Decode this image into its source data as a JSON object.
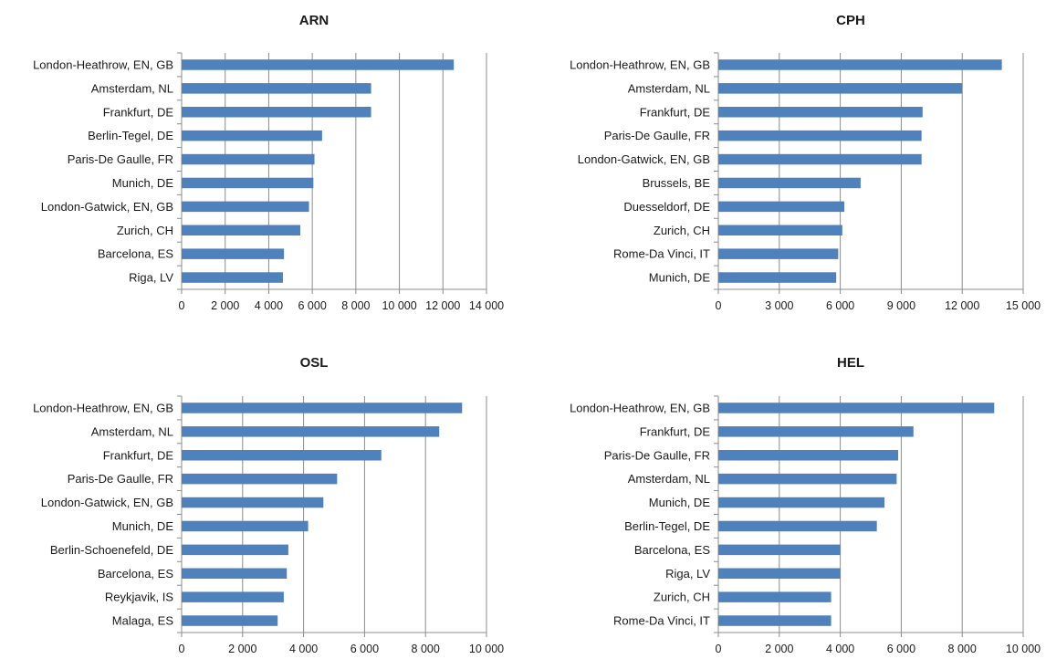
{
  "chart_data": [
    {
      "type": "bar",
      "orientation": "horizontal",
      "title": "ARN",
      "categories": [
        "London-Heathrow, EN, GB",
        "Amsterdam, NL",
        "Frankfurt, DE",
        "Berlin-Tegel, DE",
        "Paris-De Gaulle, FR",
        "Munich, DE",
        "London-Gatwick, EN, GB",
        "Zurich, CH",
        "Barcelona, ES",
        "Riga, LV"
      ],
      "values": [
        12500,
        8700,
        8700,
        6450,
        6100,
        6050,
        5850,
        5450,
        4700,
        4650
      ],
      "xlim": [
        0,
        14000
      ],
      "xticks": [
        0,
        2000,
        4000,
        6000,
        8000,
        10000,
        12000,
        14000
      ],
      "xtick_labels": [
        "0",
        "2 000",
        "4 000",
        "6 000",
        "8 000",
        "10 000",
        "12 000",
        "14 000"
      ],
      "grid": true,
      "color": "#4f81bd"
    },
    {
      "type": "bar",
      "orientation": "horizontal",
      "title": "CPH",
      "categories": [
        "London-Heathrow, EN, GB",
        "Amsterdam, NL",
        "Frankfurt, DE",
        "Paris-De Gaulle, FR",
        "London-Gatwick, EN, GB",
        "Brussels, BE",
        "Duesseldorf, DE",
        "Zurich, CH",
        "Rome-Da Vinci, IT",
        "Munich, DE"
      ],
      "values": [
        13950,
        12000,
        10050,
        10000,
        10000,
        7000,
        6200,
        6100,
        5900,
        5800
      ],
      "xlim": [
        0,
        15000
      ],
      "xticks": [
        0,
        3000,
        6000,
        9000,
        12000,
        15000
      ],
      "xtick_labels": [
        "0",
        "3 000",
        "6 000",
        "9 000",
        "12 000",
        "15 000"
      ],
      "grid": true,
      "color": "#4f81bd"
    },
    {
      "type": "bar",
      "orientation": "horizontal",
      "title": "OSL",
      "categories": [
        "London-Heathrow, EN, GB",
        "Amsterdam, NL",
        "Frankfurt, DE",
        "Paris-De Gaulle, FR",
        "London-Gatwick, EN, GB",
        "Munich, DE",
        "Berlin-Schoenefeld, DE",
        "Barcelona, ES",
        "Reykjavik, IS",
        "Malaga, ES"
      ],
      "values": [
        9200,
        8450,
        6550,
        5100,
        4650,
        4150,
        3500,
        3450,
        3350,
        3150
      ],
      "xlim": [
        0,
        10000
      ],
      "xticks": [
        0,
        2000,
        4000,
        6000,
        8000,
        10000
      ],
      "xtick_labels": [
        "0",
        "2 000",
        "4 000",
        "6 000",
        "8 000",
        "10 000"
      ],
      "grid": true,
      "color": "#4f81bd"
    },
    {
      "type": "bar",
      "orientation": "horizontal",
      "title": "HEL",
      "categories": [
        "London-Heathrow, EN, GB",
        "Frankfurt, DE",
        "Paris-De Gaulle, FR",
        "Amsterdam, NL",
        "Munich, DE",
        "Berlin-Tegel, DE",
        "Barcelona, ES",
        "Riga, LV",
        "Zurich, CH",
        "Rome-Da Vinci, IT"
      ],
      "values": [
        9050,
        6400,
        5900,
        5850,
        5450,
        5200,
        4000,
        4000,
        3700,
        3700
      ],
      "xlim": [
        0,
        10000
      ],
      "xticks": [
        0,
        2000,
        4000,
        6000,
        8000,
        10000
      ],
      "xtick_labels": [
        "0",
        "2 000",
        "4 000",
        "6 000",
        "8 000",
        "10 000"
      ],
      "grid": true,
      "color": "#4f81bd"
    }
  ]
}
